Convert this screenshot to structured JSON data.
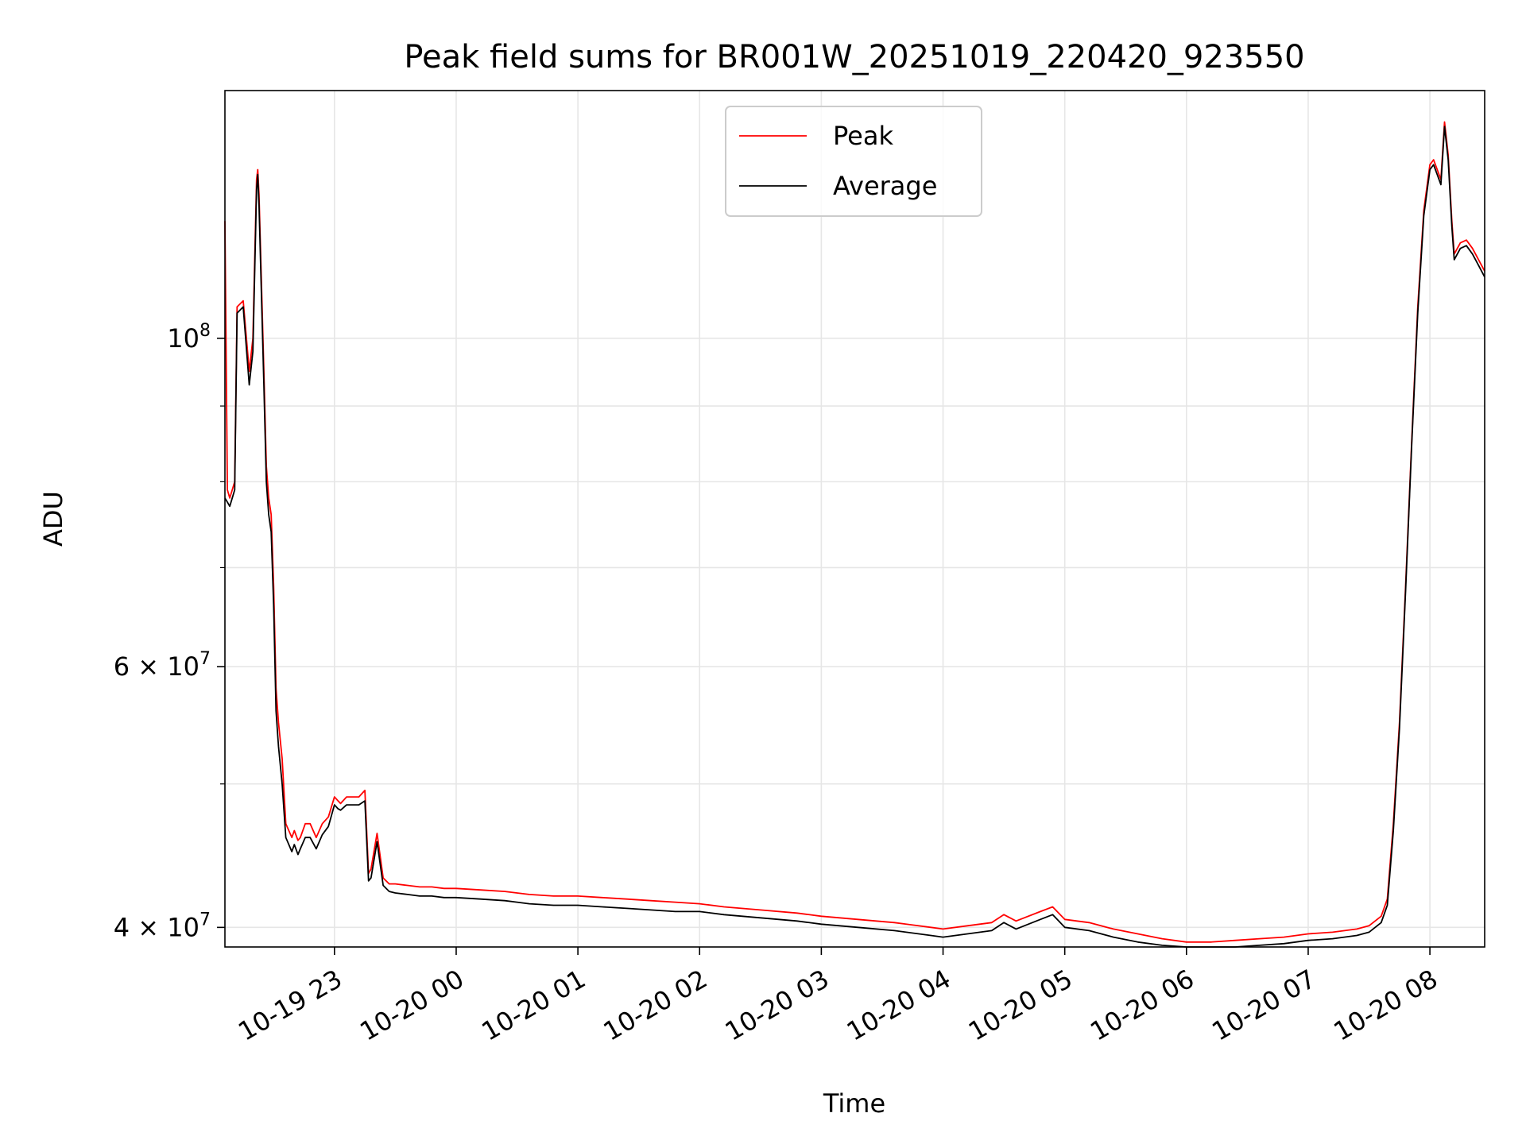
{
  "chart_data": {
    "type": "line",
    "title": "Peak field sums for BR001W_20251019_220420_923550",
    "xlabel": "Time",
    "ylabel": "ADU",
    "yscale": "log",
    "grid": true,
    "legend_position": "top-center",
    "xlim": [
      22.1,
      32.45
    ],
    "ylim": [
      38800000,
      147000000
    ],
    "x_unit": "hours since 2025-10-19 00:00",
    "x_ticks": [
      {
        "value": 23,
        "label": "10-19 23"
      },
      {
        "value": 24,
        "label": "10-20 00"
      },
      {
        "value": 25,
        "label": "10-20 01"
      },
      {
        "value": 26,
        "label": "10-20 02"
      },
      {
        "value": 27,
        "label": "10-20 03"
      },
      {
        "value": 28,
        "label": "10-20 04"
      },
      {
        "value": 29,
        "label": "10-20 05"
      },
      {
        "value": 30,
        "label": "10-20 06"
      },
      {
        "value": 31,
        "label": "10-20 07"
      },
      {
        "value": 32,
        "label": "10-20 08"
      }
    ],
    "y_major_ticks": [
      {
        "value": 40000000,
        "mantissa": "4",
        "exponent": "7"
      },
      {
        "value": 60000000,
        "mantissa": "6",
        "exponent": "7"
      },
      {
        "value": 100000000,
        "mantissa": "",
        "exponent": "8"
      }
    ],
    "y_minor_grid": [
      50000000,
      70000000,
      80000000,
      90000000
    ],
    "series": [
      {
        "name": "Peak",
        "color": "#ff0000",
        "x": [
          22.1,
          22.12,
          22.14,
          22.18,
          22.2,
          22.25,
          22.3,
          22.33,
          22.36,
          22.37,
          22.38,
          22.42,
          22.44,
          22.46,
          22.48,
          22.5,
          22.52,
          22.54,
          22.57,
          22.6,
          22.65,
          22.67,
          22.7,
          22.72,
          22.74,
          22.76,
          22.8,
          22.85,
          22.9,
          22.95,
          23.0,
          23.03,
          23.05,
          23.1,
          23.2,
          23.25,
          23.28,
          23.3,
          23.35,
          23.4,
          23.45,
          23.5,
          23.6,
          23.7,
          23.8,
          23.9,
          24.0,
          24.2,
          24.4,
          24.5,
          24.6,
          24.8,
          25.0,
          25.2,
          25.4,
          25.6,
          25.8,
          26.0,
          26.2,
          26.5,
          26.8,
          27.0,
          27.3,
          27.6,
          27.9,
          28.0,
          28.2,
          28.4,
          28.5,
          28.6,
          28.8,
          28.9,
          29.0,
          29.2,
          29.4,
          29.6,
          29.8,
          30.0,
          30.2,
          30.4,
          30.6,
          30.8,
          31.0,
          31.2,
          31.4,
          31.5,
          31.6,
          31.65,
          31.7,
          31.75,
          31.8,
          31.85,
          31.9,
          31.95,
          32.0,
          32.03,
          32.06,
          32.09,
          32.12,
          32.15,
          32.18,
          32.2,
          32.25,
          32.3,
          32.35,
          32.4,
          32.45
        ],
        "y": [
          120000000,
          79000000,
          78000000,
          80000000,
          105000000,
          106000000,
          95000000,
          100000000,
          128000000,
          130000000,
          125000000,
          95000000,
          82000000,
          78000000,
          76000000,
          68000000,
          58000000,
          55000000,
          52000000,
          47000000,
          46000000,
          46500000,
          45800000,
          46000000,
          46500000,
          47000000,
          47000000,
          46000000,
          47000000,
          47500000,
          49000000,
          48700000,
          48500000,
          49000000,
          49000000,
          49500000,
          43500000,
          43800000,
          46300000,
          43200000,
          42800000,
          42800000,
          42700000,
          42600000,
          42600000,
          42500000,
          42500000,
          42400000,
          42300000,
          42200000,
          42100000,
          42000000,
          42000000,
          41900000,
          41800000,
          41700000,
          41600000,
          41500000,
          41300000,
          41100000,
          40900000,
          40700000,
          40500000,
          40300000,
          40000000,
          39900000,
          40100000,
          40300000,
          40800000,
          40400000,
          41000000,
          41300000,
          40500000,
          40300000,
          39900000,
          39600000,
          39300000,
          39100000,
          39100000,
          39200000,
          39300000,
          39400000,
          39600000,
          39700000,
          39900000,
          40100000,
          40700000,
          41800000,
          47000000,
          55000000,
          68000000,
          85000000,
          105000000,
          122000000,
          131000000,
          132000000,
          130000000,
          128000000,
          140000000,
          133000000,
          120000000,
          114000000,
          116000000,
          116500000,
          115000000,
          113000000,
          111000000
        ]
      },
      {
        "name": "Average",
        "color": "#000000",
        "x": [
          22.1,
          22.12,
          22.14,
          22.18,
          22.2,
          22.25,
          22.3,
          22.33,
          22.36,
          22.37,
          22.38,
          22.42,
          22.44,
          22.46,
          22.48,
          22.5,
          22.52,
          22.54,
          22.57,
          22.6,
          22.65,
          22.67,
          22.7,
          22.72,
          22.74,
          22.76,
          22.8,
          22.85,
          22.9,
          22.95,
          23.0,
          23.03,
          23.05,
          23.1,
          23.2,
          23.25,
          23.28,
          23.3,
          23.35,
          23.4,
          23.45,
          23.5,
          23.6,
          23.7,
          23.8,
          23.9,
          24.0,
          24.2,
          24.4,
          24.5,
          24.6,
          24.8,
          25.0,
          25.2,
          25.4,
          25.6,
          25.8,
          26.0,
          26.2,
          26.5,
          26.8,
          27.0,
          27.3,
          27.6,
          27.9,
          28.0,
          28.2,
          28.4,
          28.5,
          28.6,
          28.8,
          28.9,
          29.0,
          29.2,
          29.4,
          29.6,
          29.8,
          30.0,
          30.2,
          30.4,
          30.6,
          30.8,
          31.0,
          31.2,
          31.4,
          31.5,
          31.6,
          31.65,
          31.7,
          31.75,
          31.8,
          31.85,
          31.9,
          31.95,
          32.0,
          32.03,
          32.06,
          32.09,
          32.12,
          32.15,
          32.18,
          32.2,
          32.25,
          32.3,
          32.35,
          32.4,
          32.45
        ],
        "y": [
          78000000,
          77500000,
          77000000,
          79000000,
          104000000,
          105000000,
          93000000,
          98000000,
          126000000,
          129000000,
          123000000,
          93000000,
          80000000,
          76000000,
          74000000,
          66000000,
          56000000,
          53000000,
          50000000,
          46000000,
          45000000,
          45500000,
          44800000,
          45200000,
          45600000,
          46000000,
          46000000,
          45200000,
          46200000,
          46800000,
          48400000,
          48100000,
          48000000,
          48400000,
          48400000,
          48700000,
          43000000,
          43200000,
          45700000,
          42700000,
          42300000,
          42200000,
          42100000,
          42000000,
          42000000,
          41900000,
          41900000,
          41800000,
          41700000,
          41600000,
          41500000,
          41400000,
          41400000,
          41300000,
          41200000,
          41100000,
          41000000,
          41000000,
          40800000,
          40600000,
          40400000,
          40200000,
          40000000,
          39800000,
          39500000,
          39400000,
          39600000,
          39800000,
          40300000,
          39900000,
          40500000,
          40800000,
          40000000,
          39800000,
          39400000,
          39100000,
          38900000,
          38700000,
          38700000,
          38800000,
          38900000,
          39000000,
          39200000,
          39300000,
          39500000,
          39700000,
          40300000,
          41400000,
          46500000,
          54500000,
          67500000,
          84500000,
          104000000,
          121000000,
          130000000,
          131000000,
          129000000,
          127000000,
          139000000,
          132000000,
          119000000,
          113000000,
          115000000,
          115500000,
          114000000,
          112000000,
          110000000
        ]
      }
    ]
  }
}
